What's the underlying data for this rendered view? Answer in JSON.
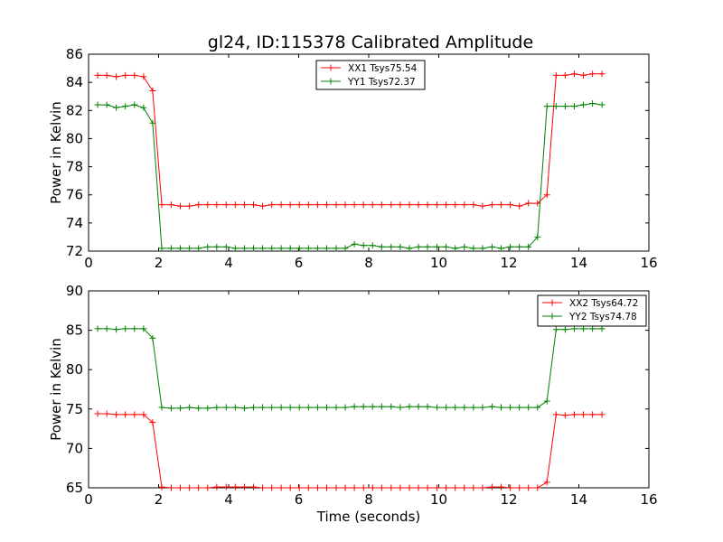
{
  "figure": {
    "title": "gl24, ID:115378 Calibrated Amplitude"
  },
  "chart_data": [
    {
      "type": "line",
      "title": "gl24, ID:115378 Calibrated Amplitude",
      "xlabel": "",
      "ylabel": "Power in Kelvin",
      "xlim": [
        0,
        16
      ],
      "ylim": [
        72,
        86
      ],
      "xticks": [
        0,
        2,
        4,
        6,
        8,
        10,
        12,
        14,
        16
      ],
      "yticks": [
        72,
        74,
        76,
        78,
        80,
        82,
        84,
        86
      ],
      "grid": false,
      "legend_position": "upper-center",
      "x": [
        0.26,
        0.52,
        0.79,
        1.05,
        1.31,
        1.57,
        1.83,
        2.09,
        2.36,
        2.62,
        2.88,
        3.14,
        3.4,
        3.66,
        3.93,
        4.19,
        4.45,
        4.71,
        4.97,
        5.23,
        5.5,
        5.76,
        6.02,
        6.28,
        6.54,
        6.8,
        7.07,
        7.33,
        7.59,
        7.85,
        8.11,
        8.37,
        8.64,
        8.9,
        9.16,
        9.42,
        9.68,
        9.95,
        10.21,
        10.47,
        10.73,
        10.99,
        11.25,
        11.52,
        11.78,
        12.04,
        12.3,
        12.56,
        12.82,
        13.09,
        13.35,
        13.61,
        13.87,
        14.13,
        14.39,
        14.66
      ],
      "series": [
        {
          "name": "XX1 Tsys75.54",
          "color": "#ff0000",
          "values": [
            84.5,
            84.5,
            84.4,
            84.5,
            84.5,
            84.4,
            83.4,
            75.3,
            75.3,
            75.2,
            75.2,
            75.3,
            75.3,
            75.3,
            75.3,
            75.3,
            75.3,
            75.3,
            75.2,
            75.3,
            75.3,
            75.3,
            75.3,
            75.3,
            75.3,
            75.3,
            75.3,
            75.3,
            75.3,
            75.3,
            75.3,
            75.3,
            75.3,
            75.3,
            75.3,
            75.3,
            75.3,
            75.3,
            75.3,
            75.3,
            75.3,
            75.3,
            75.2,
            75.3,
            75.3,
            75.3,
            75.2,
            75.4,
            75.4,
            76.0,
            84.5,
            84.5,
            84.6,
            84.5,
            84.6,
            84.6
          ]
        },
        {
          "name": "YY1 Tsys72.37",
          "color": "#008000",
          "values": [
            82.4,
            82.4,
            82.2,
            82.3,
            82.4,
            82.2,
            81.1,
            72.2,
            72.2,
            72.2,
            72.2,
            72.2,
            72.3,
            72.3,
            72.3,
            72.2,
            72.2,
            72.2,
            72.2,
            72.2,
            72.2,
            72.2,
            72.2,
            72.2,
            72.2,
            72.2,
            72.2,
            72.2,
            72.5,
            72.4,
            72.4,
            72.3,
            72.3,
            72.3,
            72.2,
            72.3,
            72.3,
            72.3,
            72.3,
            72.2,
            72.3,
            72.2,
            72.2,
            72.3,
            72.2,
            72.3,
            72.3,
            72.3,
            73.0,
            82.3,
            82.3,
            82.3,
            82.3,
            82.4,
            82.5,
            82.4
          ]
        }
      ]
    },
    {
      "type": "line",
      "title": "",
      "xlabel": "Time (seconds)",
      "ylabel": "Power in Kelvin",
      "xlim": [
        0,
        16
      ],
      "ylim": [
        65,
        90
      ],
      "xticks": [
        0,
        2,
        4,
        6,
        8,
        10,
        12,
        14,
        16
      ],
      "yticks": [
        65,
        70,
        75,
        80,
        85,
        90
      ],
      "grid": false,
      "legend_position": "upper-right",
      "x": [
        0.26,
        0.52,
        0.79,
        1.05,
        1.31,
        1.57,
        1.83,
        2.09,
        2.36,
        2.62,
        2.88,
        3.14,
        3.4,
        3.66,
        3.93,
        4.19,
        4.45,
        4.71,
        4.97,
        5.23,
        5.5,
        5.76,
        6.02,
        6.28,
        6.54,
        6.8,
        7.07,
        7.33,
        7.59,
        7.85,
        8.11,
        8.37,
        8.64,
        8.9,
        9.16,
        9.42,
        9.68,
        9.95,
        10.21,
        10.47,
        10.73,
        10.99,
        11.25,
        11.52,
        11.78,
        12.04,
        12.3,
        12.56,
        12.82,
        13.09,
        13.35,
        13.61,
        13.87,
        14.13,
        14.39,
        14.66
      ],
      "series": [
        {
          "name": "XX2 Tsys64.72",
          "color": "#ff0000",
          "values": [
            74.4,
            74.4,
            74.3,
            74.3,
            74.3,
            74.3,
            73.3,
            65.1,
            65.0,
            65.0,
            65.0,
            65.0,
            65.0,
            65.1,
            65.1,
            65.1,
            65.1,
            65.1,
            65.0,
            65.0,
            65.0,
            65.0,
            65.0,
            65.0,
            65.0,
            65.0,
            65.0,
            65.0,
            65.0,
            65.0,
            65.0,
            65.0,
            65.0,
            65.0,
            65.0,
            65.0,
            65.0,
            65.0,
            65.0,
            65.0,
            65.0,
            65.0,
            65.0,
            65.1,
            65.1,
            65.0,
            65.0,
            65.0,
            65.0,
            65.7,
            74.3,
            74.2,
            74.3,
            74.3,
            74.3,
            74.3
          ]
        },
        {
          "name": "YY2 Tsys74.78",
          "color": "#008000",
          "values": [
            85.2,
            85.2,
            85.1,
            85.2,
            85.2,
            85.2,
            84.0,
            75.2,
            75.1,
            75.1,
            75.2,
            75.1,
            75.1,
            75.2,
            75.2,
            75.2,
            75.1,
            75.2,
            75.2,
            75.2,
            75.2,
            75.2,
            75.2,
            75.2,
            75.2,
            75.2,
            75.2,
            75.2,
            75.3,
            75.3,
            75.3,
            75.3,
            75.3,
            75.2,
            75.3,
            75.3,
            75.3,
            75.2,
            75.2,
            75.2,
            75.2,
            75.2,
            75.2,
            75.3,
            75.2,
            75.2,
            75.2,
            75.2,
            75.2,
            76.0,
            85.1,
            85.1,
            85.2,
            85.2,
            85.2,
            85.2
          ]
        }
      ]
    }
  ]
}
